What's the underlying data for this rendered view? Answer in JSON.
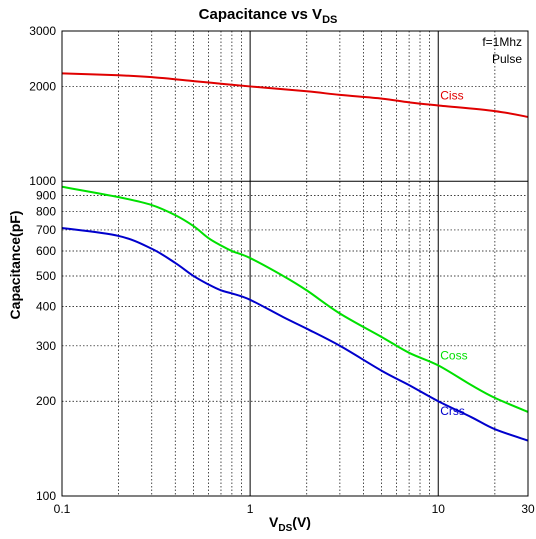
{
  "chart_data": {
    "type": "line",
    "title": "Capacitance vs V",
    "title_subscript": "DS",
    "xlabel": "V",
    "xlabel_subscript": "DS",
    "xlabel_suffix": "(V)",
    "ylabel": "Capacitance(pF)",
    "x_scale": "log",
    "y_scale": "log",
    "xlim": [
      0.1,
      30
    ],
    "ylim": [
      100,
      3000
    ],
    "x_ticks": [
      {
        "value": 0.1,
        "label": "0.1"
      },
      {
        "value": 1,
        "label": "1"
      },
      {
        "value": 10,
        "label": "10"
      },
      {
        "value": 30,
        "label": "30"
      }
    ],
    "y_ticks": [
      {
        "value": 100,
        "label": "100"
      },
      {
        "value": 200,
        "label": "200"
      },
      {
        "value": 300,
        "label": "300"
      },
      {
        "value": 400,
        "label": "400"
      },
      {
        "value": 500,
        "label": "500"
      },
      {
        "value": 600,
        "label": "600"
      },
      {
        "value": 700,
        "label": "700"
      },
      {
        "value": 800,
        "label": "800"
      },
      {
        "value": 900,
        "label": "900"
      },
      {
        "value": 1000,
        "label": "1000"
      },
      {
        "value": 2000,
        "label": "2000"
      },
      {
        "value": 3000,
        "label": "3000"
      }
    ],
    "grid": true,
    "annotations": [
      "f=1Mhz",
      "Pulse"
    ],
    "series": [
      {
        "name": "Ciss",
        "color": "#e00000",
        "x": [
          0.1,
          0.2,
          0.3,
          0.5,
          0.7,
          1,
          2,
          3,
          5,
          7,
          10,
          20,
          30
        ],
        "y": [
          2200,
          2170,
          2140,
          2080,
          2040,
          2000,
          1930,
          1880,
          1830,
          1780,
          1740,
          1670,
          1600
        ]
      },
      {
        "name": "Coss",
        "color": "#00e000",
        "x": [
          0.1,
          0.2,
          0.3,
          0.4,
          0.5,
          0.6,
          0.7,
          0.8,
          1,
          1.5,
          2,
          3,
          5,
          7,
          10,
          15,
          20,
          30
        ],
        "y": [
          960,
          890,
          840,
          780,
          720,
          660,
          625,
          600,
          570,
          500,
          450,
          380,
          320,
          285,
          260,
          225,
          205,
          185
        ]
      },
      {
        "name": "Crss",
        "color": "#0000cc",
        "x": [
          0.1,
          0.2,
          0.3,
          0.4,
          0.5,
          0.6,
          0.7,
          0.8,
          1,
          1.5,
          2,
          3,
          5,
          7,
          10,
          15,
          20,
          30
        ],
        "y": [
          710,
          670,
          610,
          550,
          500,
          470,
          450,
          440,
          420,
          370,
          340,
          300,
          250,
          225,
          200,
          178,
          163,
          150
        ]
      }
    ]
  }
}
